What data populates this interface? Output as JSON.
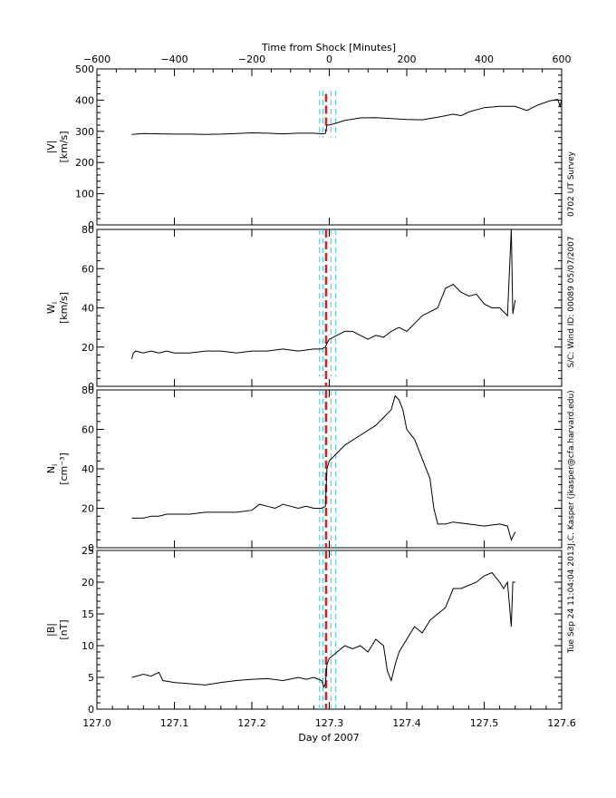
{
  "top_axis": {
    "title": "Time from Shock [Minutes]",
    "range": [
      -600,
      600
    ],
    "ticks": [
      -600,
      -400,
      -200,
      0,
      200,
      400,
      600
    ],
    "tick_labels": [
      "−600",
      "−400",
      "−200",
      "0",
      "200",
      "400",
      "600"
    ]
  },
  "bottom_axis": {
    "title": "Day of 2007",
    "range": [
      127.0,
      127.6
    ],
    "ticks": [
      127.0,
      127.1,
      127.2,
      127.3,
      127.4,
      127.5,
      127.6
    ],
    "tick_labels": [
      "127.0",
      "127.1",
      "127.2",
      "127.3",
      "127.4",
      "127.5",
      "127.6"
    ]
  },
  "side_text": {
    "timestamp": "Tue Sep 24 11:04:04 2013",
    "author": "J.C. Kasper (jkasper@cfa.harvard.edu)",
    "spacecraft": "S/C: Wind ID: 00089 05/07/2007",
    "survey": "0702 UT Survey"
  },
  "colors": {
    "data_line": "#000000",
    "shock_line": "#e0201e",
    "interval_line": "#30c8e8"
  },
  "chart_data": [
    {
      "type": "line",
      "name": "speed",
      "ylabel_top": "|V|",
      "ylabel_bottom": "[km/s]",
      "ylim": [
        0,
        500
      ],
      "yticks": [
        0,
        100,
        200,
        300,
        400,
        500
      ],
      "x_range": [
        127.0,
        127.6
      ],
      "shock_line": {
        "x": 127.2958,
        "ylim": [
          300,
          420
        ]
      },
      "interval_lines": {
        "x": [
          127.2875,
          127.2917,
          127.3021,
          127.3084
        ],
        "ylim": [
          280,
          430
        ]
      },
      "points": [
        [
          127.045,
          290
        ],
        [
          127.06,
          293
        ],
        [
          127.08,
          292
        ],
        [
          127.1,
          291
        ],
        [
          127.12,
          291
        ],
        [
          127.14,
          290
        ],
        [
          127.16,
          291
        ],
        [
          127.18,
          293
        ],
        [
          127.2,
          295
        ],
        [
          127.22,
          294
        ],
        [
          127.24,
          292
        ],
        [
          127.26,
          294
        ],
        [
          127.28,
          294
        ],
        [
          127.29,
          292
        ],
        [
          127.295,
          293
        ],
        [
          127.297,
          320
        ],
        [
          127.3,
          320
        ],
        [
          127.31,
          327
        ],
        [
          127.32,
          335
        ],
        [
          127.34,
          343
        ],
        [
          127.36,
          344
        ],
        [
          127.38,
          341
        ],
        [
          127.4,
          338
        ],
        [
          127.42,
          337
        ],
        [
          127.44,
          345
        ],
        [
          127.46,
          355
        ],
        [
          127.47,
          350
        ],
        [
          127.48,
          362
        ],
        [
          127.5,
          376
        ],
        [
          127.52,
          380
        ],
        [
          127.54,
          380
        ],
        [
          127.555,
          367
        ],
        [
          127.57,
          385
        ],
        [
          127.585,
          398
        ],
        [
          127.595,
          402
        ],
        [
          127.598,
          380
        ],
        [
          127.6,
          405
        ]
      ]
    },
    {
      "type": "line",
      "name": "thermal_speed",
      "ylabel_top": "W",
      "ylabel_sub": "i",
      "ylabel_bottom": "[km/s]",
      "ylim": [
        0,
        80
      ],
      "yticks": [
        0,
        20,
        40,
        60,
        80
      ],
      "x_range": [
        127.0,
        127.6
      ],
      "shock_line": {
        "x": 127.2958,
        "ylim": [
          0,
          80
        ]
      },
      "interval_lines": {
        "x": [
          127.2875,
          127.2917,
          127.3021,
          127.3084
        ],
        "ylim": [
          5,
          80
        ]
      },
      "points": [
        [
          127.045,
          14
        ],
        [
          127.047,
          17
        ],
        [
          127.05,
          18
        ],
        [
          127.06,
          17
        ],
        [
          127.07,
          18
        ],
        [
          127.08,
          17
        ],
        [
          127.09,
          18
        ],
        [
          127.1,
          17
        ],
        [
          127.12,
          17
        ],
        [
          127.14,
          18
        ],
        [
          127.16,
          18
        ],
        [
          127.18,
          17
        ],
        [
          127.2,
          18
        ],
        [
          127.22,
          18
        ],
        [
          127.24,
          19
        ],
        [
          127.26,
          18
        ],
        [
          127.28,
          19
        ],
        [
          127.29,
          19
        ],
        [
          127.295,
          20
        ],
        [
          127.297,
          22
        ],
        [
          127.3,
          24
        ],
        [
          127.31,
          26
        ],
        [
          127.32,
          28
        ],
        [
          127.33,
          28
        ],
        [
          127.34,
          26
        ],
        [
          127.35,
          24
        ],
        [
          127.36,
          26
        ],
        [
          127.37,
          25
        ],
        [
          127.38,
          28
        ],
        [
          127.39,
          30
        ],
        [
          127.4,
          28
        ],
        [
          127.41,
          32
        ],
        [
          127.42,
          36
        ],
        [
          127.43,
          38
        ],
        [
          127.44,
          40
        ],
        [
          127.45,
          50
        ],
        [
          127.46,
          52
        ],
        [
          127.47,
          48
        ],
        [
          127.48,
          46
        ],
        [
          127.49,
          47
        ],
        [
          127.5,
          42
        ],
        [
          127.51,
          40
        ],
        [
          127.52,
          40
        ],
        [
          127.53,
          36
        ],
        [
          127.535,
          80
        ],
        [
          127.537,
          37
        ],
        [
          127.54,
          44
        ]
      ]
    },
    {
      "type": "line",
      "name": "density",
      "ylabel_top": "N",
      "ylabel_sub": "i",
      "ylabel_bottom": "[cm⁻³]",
      "ylim": [
        0,
        80
      ],
      "yticks": [
        0,
        20,
        40,
        60,
        80
      ],
      "x_range": [
        127.0,
        127.6
      ],
      "shock_line": {
        "x": 127.2958,
        "ylim": [
          0,
          80
        ]
      },
      "interval_lines": {
        "x": [
          127.2875,
          127.2917,
          127.3021,
          127.3084
        ],
        "ylim": [
          0,
          80
        ]
      },
      "points": [
        [
          127.045,
          15
        ],
        [
          127.06,
          15
        ],
        [
          127.07,
          16
        ],
        [
          127.08,
          16
        ],
        [
          127.09,
          17
        ],
        [
          127.1,
          17
        ],
        [
          127.12,
          17
        ],
        [
          127.14,
          18
        ],
        [
          127.16,
          18
        ],
        [
          127.18,
          18
        ],
        [
          127.2,
          19
        ],
        [
          127.21,
          22
        ],
        [
          127.22,
          21
        ],
        [
          127.23,
          20
        ],
        [
          127.24,
          22
        ],
        [
          127.25,
          21
        ],
        [
          127.26,
          20
        ],
        [
          127.27,
          21
        ],
        [
          127.28,
          20
        ],
        [
          127.29,
          20
        ],
        [
          127.295,
          21
        ],
        [
          127.297,
          40
        ],
        [
          127.3,
          44
        ],
        [
          127.31,
          48
        ],
        [
          127.32,
          52
        ],
        [
          127.34,
          57
        ],
        [
          127.36,
          62
        ],
        [
          127.37,
          66
        ],
        [
          127.38,
          70
        ],
        [
          127.385,
          77
        ],
        [
          127.39,
          75
        ],
        [
          127.395,
          70
        ],
        [
          127.4,
          60
        ],
        [
          127.41,
          55
        ],
        [
          127.42,
          45
        ],
        [
          127.43,
          35
        ],
        [
          127.435,
          20
        ],
        [
          127.44,
          12
        ],
        [
          127.45,
          12
        ],
        [
          127.46,
          13
        ],
        [
          127.48,
          12
        ],
        [
          127.5,
          11
        ],
        [
          127.52,
          12
        ],
        [
          127.53,
          11
        ],
        [
          127.535,
          4
        ],
        [
          127.54,
          8
        ]
      ]
    },
    {
      "type": "line",
      "name": "magnetic_field",
      "ylabel_top": "|B|",
      "ylabel_bottom": "[nT]",
      "ylim": [
        0,
        25
      ],
      "yticks": [
        0,
        5,
        10,
        15,
        20,
        25
      ],
      "x_range": [
        127.0,
        127.6
      ],
      "shock_line": {
        "x": 127.2958,
        "ylim": [
          0,
          25
        ]
      },
      "interval_lines": {
        "x": [
          127.2875,
          127.2917,
          127.3021,
          127.3084
        ],
        "ylim": [
          0,
          25
        ]
      },
      "points": [
        [
          127.045,
          5
        ],
        [
          127.06,
          5.5
        ],
        [
          127.07,
          5.2
        ],
        [
          127.08,
          5.8
        ],
        [
          127.085,
          4.5
        ],
        [
          127.1,
          4.2
        ],
        [
          127.12,
          4
        ],
        [
          127.14,
          3.8
        ],
        [
          127.16,
          4.2
        ],
        [
          127.18,
          4.5
        ],
        [
          127.2,
          4.7
        ],
        [
          127.22,
          4.8
        ],
        [
          127.24,
          4.5
        ],
        [
          127.26,
          5
        ],
        [
          127.27,
          4.7
        ],
        [
          127.28,
          5
        ],
        [
          127.29,
          4.5
        ],
        [
          127.293,
          3.5
        ],
        [
          127.295,
          4
        ],
        [
          127.297,
          7
        ],
        [
          127.3,
          8
        ],
        [
          127.31,
          9
        ],
        [
          127.32,
          10
        ],
        [
          127.33,
          9.5
        ],
        [
          127.34,
          10
        ],
        [
          127.35,
          9
        ],
        [
          127.36,
          11
        ],
        [
          127.37,
          10
        ],
        [
          127.375,
          6
        ],
        [
          127.38,
          4.5
        ],
        [
          127.385,
          7
        ],
        [
          127.39,
          9
        ],
        [
          127.4,
          11
        ],
        [
          127.41,
          13
        ],
        [
          127.42,
          12
        ],
        [
          127.43,
          14
        ],
        [
          127.44,
          15
        ],
        [
          127.45,
          16
        ],
        [
          127.46,
          19
        ],
        [
          127.47,
          19
        ],
        [
          127.48,
          19.5
        ],
        [
          127.49,
          20
        ],
        [
          127.5,
          21
        ],
        [
          127.51,
          21.5
        ],
        [
          127.52,
          20
        ],
        [
          127.525,
          19
        ],
        [
          127.53,
          20
        ],
        [
          127.535,
          13
        ],
        [
          127.537,
          20
        ],
        [
          127.54,
          20
        ]
      ]
    }
  ]
}
